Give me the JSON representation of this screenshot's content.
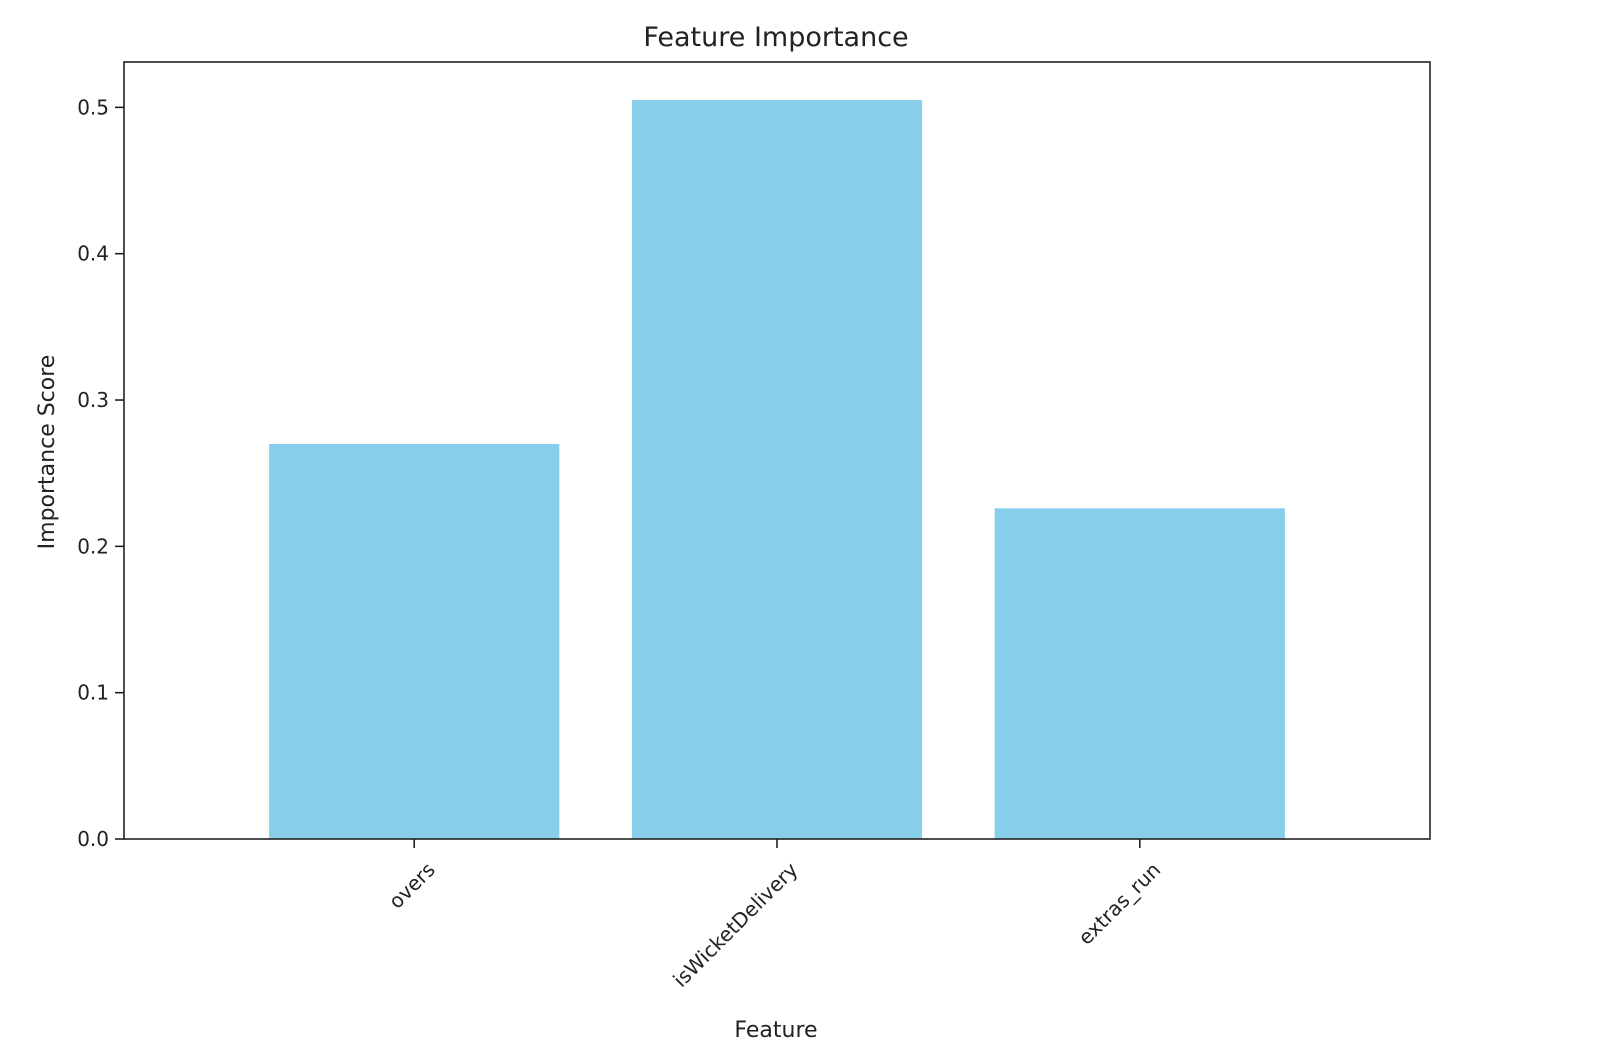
{
  "chart_data": {
    "type": "bar",
    "title": "Feature Importance",
    "xlabel": "Feature",
    "ylabel": "Importance Score",
    "categories": [
      "overs",
      "isWicketDelivery",
      "extras_run"
    ],
    "values": [
      0.27,
      0.505,
      0.226
    ],
    "ylim": [
      0,
      0.531
    ],
    "yticks": [
      0.0,
      0.1,
      0.2,
      0.3,
      0.4,
      0.5
    ],
    "ytick_labels": [
      "0.0",
      "0.1",
      "0.2",
      "0.3",
      "0.4",
      "0.5"
    ],
    "bar_color": "#87CEEB",
    "grid": false,
    "legend": "none"
  }
}
